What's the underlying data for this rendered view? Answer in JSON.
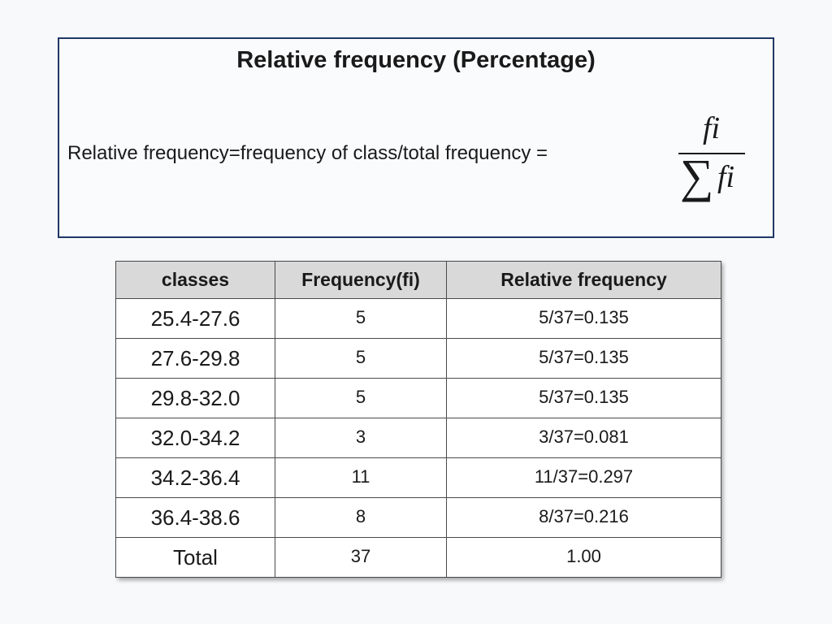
{
  "definition": {
    "title": "Relative frequency (Percentage)",
    "text": "Relative frequency=frequency of class/total frequency =",
    "formula": {
      "numerator": "fi",
      "sigma": "∑",
      "denominator": "fi"
    }
  },
  "table": {
    "headers": [
      "classes",
      "Frequency(fi)",
      "Relative frequency"
    ],
    "rows": [
      {
        "class": "25.4-27.6",
        "frequency": "5",
        "relative": "5/37=0.135"
      },
      {
        "class": "27.6-29.8",
        "frequency": "5",
        "relative": "5/37=0.135"
      },
      {
        "class": "29.8-32.0",
        "frequency": "5",
        "relative": "5/37=0.135"
      },
      {
        "class": "32.0-34.2",
        "frequency": "3",
        "relative": "3/37=0.081"
      },
      {
        "class": "34.2-36.4",
        "frequency": "11",
        "relative": "11/37=0.297"
      },
      {
        "class": "36.4-38.6",
        "frequency": "8",
        "relative": "8/37=0.216"
      },
      {
        "class": "Total",
        "frequency": "37",
        "relative": "1.00"
      }
    ]
  }
}
